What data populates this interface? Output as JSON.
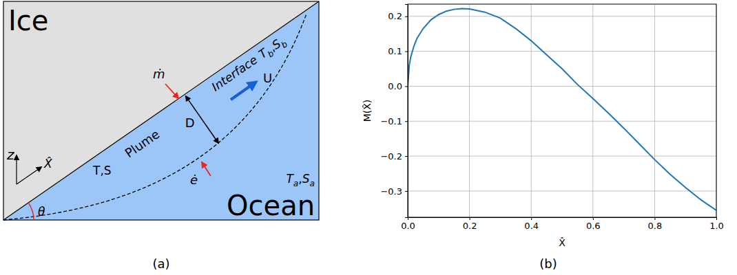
{
  "diagram": {
    "panel_label": "(a)",
    "ice_label": "Ice",
    "ocean_label": "Ocean",
    "ocean_vars": [
      {
        "symbol": "T",
        "subscript": "a"
      },
      {
        "symbol": "S",
        "subscript": "a"
      }
    ],
    "interface_label": "Interface",
    "interface_vars": [
      {
        "symbol": "T",
        "subscript": "b"
      },
      {
        "symbol": "S",
        "subscript": "b"
      }
    ],
    "separator": ",",
    "plume_label": "Plume",
    "velocity_label": "U",
    "thickness_label": "D",
    "melt_label": "ṁ",
    "entrainment_label": "ė",
    "plume_props_label": "T,S",
    "z_axis_label": "z",
    "x_axis_label": "X̂",
    "angle_label": "θ"
  },
  "chart_data": {
    "type": "line",
    "panel_label": "(b)",
    "x_label": "X̂",
    "y_label": "M(X̂)",
    "x": [
      0,
      0.005,
      0.01,
      0.02,
      0.03,
      0.05,
      0.075,
      0.1,
      0.125,
      0.15,
      0.175,
      0.2,
      0.25,
      0.3,
      0.35,
      0.4,
      0.45,
      0.5,
      0.55,
      0.6,
      0.65,
      0.7,
      0.75,
      0.8,
      0.85,
      0.9,
      0.95,
      1.0
    ],
    "values": [
      0,
      0.06,
      0.085,
      0.115,
      0.137,
      0.165,
      0.19,
      0.205,
      0.215,
      0.22,
      0.222,
      0.221,
      0.212,
      0.195,
      0.165,
      0.13,
      0.09,
      0.05,
      0.005,
      -0.035,
      -0.077,
      -0.12,
      -0.165,
      -0.21,
      -0.252,
      -0.29,
      -0.325,
      -0.355
    ],
    "color": "#1f77b4",
    "xlim": [
      0,
      1
    ],
    "ylim": [
      -0.375,
      0.235
    ],
    "xticks": [
      {
        "value": 0,
        "label": "0.0"
      },
      {
        "value": 0.2,
        "label": "0.2"
      },
      {
        "value": 0.4,
        "label": "0.4"
      },
      {
        "value": 0.6,
        "label": "0.6"
      },
      {
        "value": 0.8,
        "label": "0.8"
      },
      {
        "value": 1,
        "label": "1.0"
      }
    ],
    "yticks": [
      {
        "value": -0.3,
        "label": "−0.3"
      },
      {
        "value": -0.2,
        "label": "−0.2"
      },
      {
        "value": -0.1,
        "label": "−0.1"
      },
      {
        "value": 0,
        "label": "0.0"
      },
      {
        "value": 0.1,
        "label": "0.1"
      },
      {
        "value": 0.2,
        "label": "0.2"
      }
    ],
    "grid": true
  }
}
